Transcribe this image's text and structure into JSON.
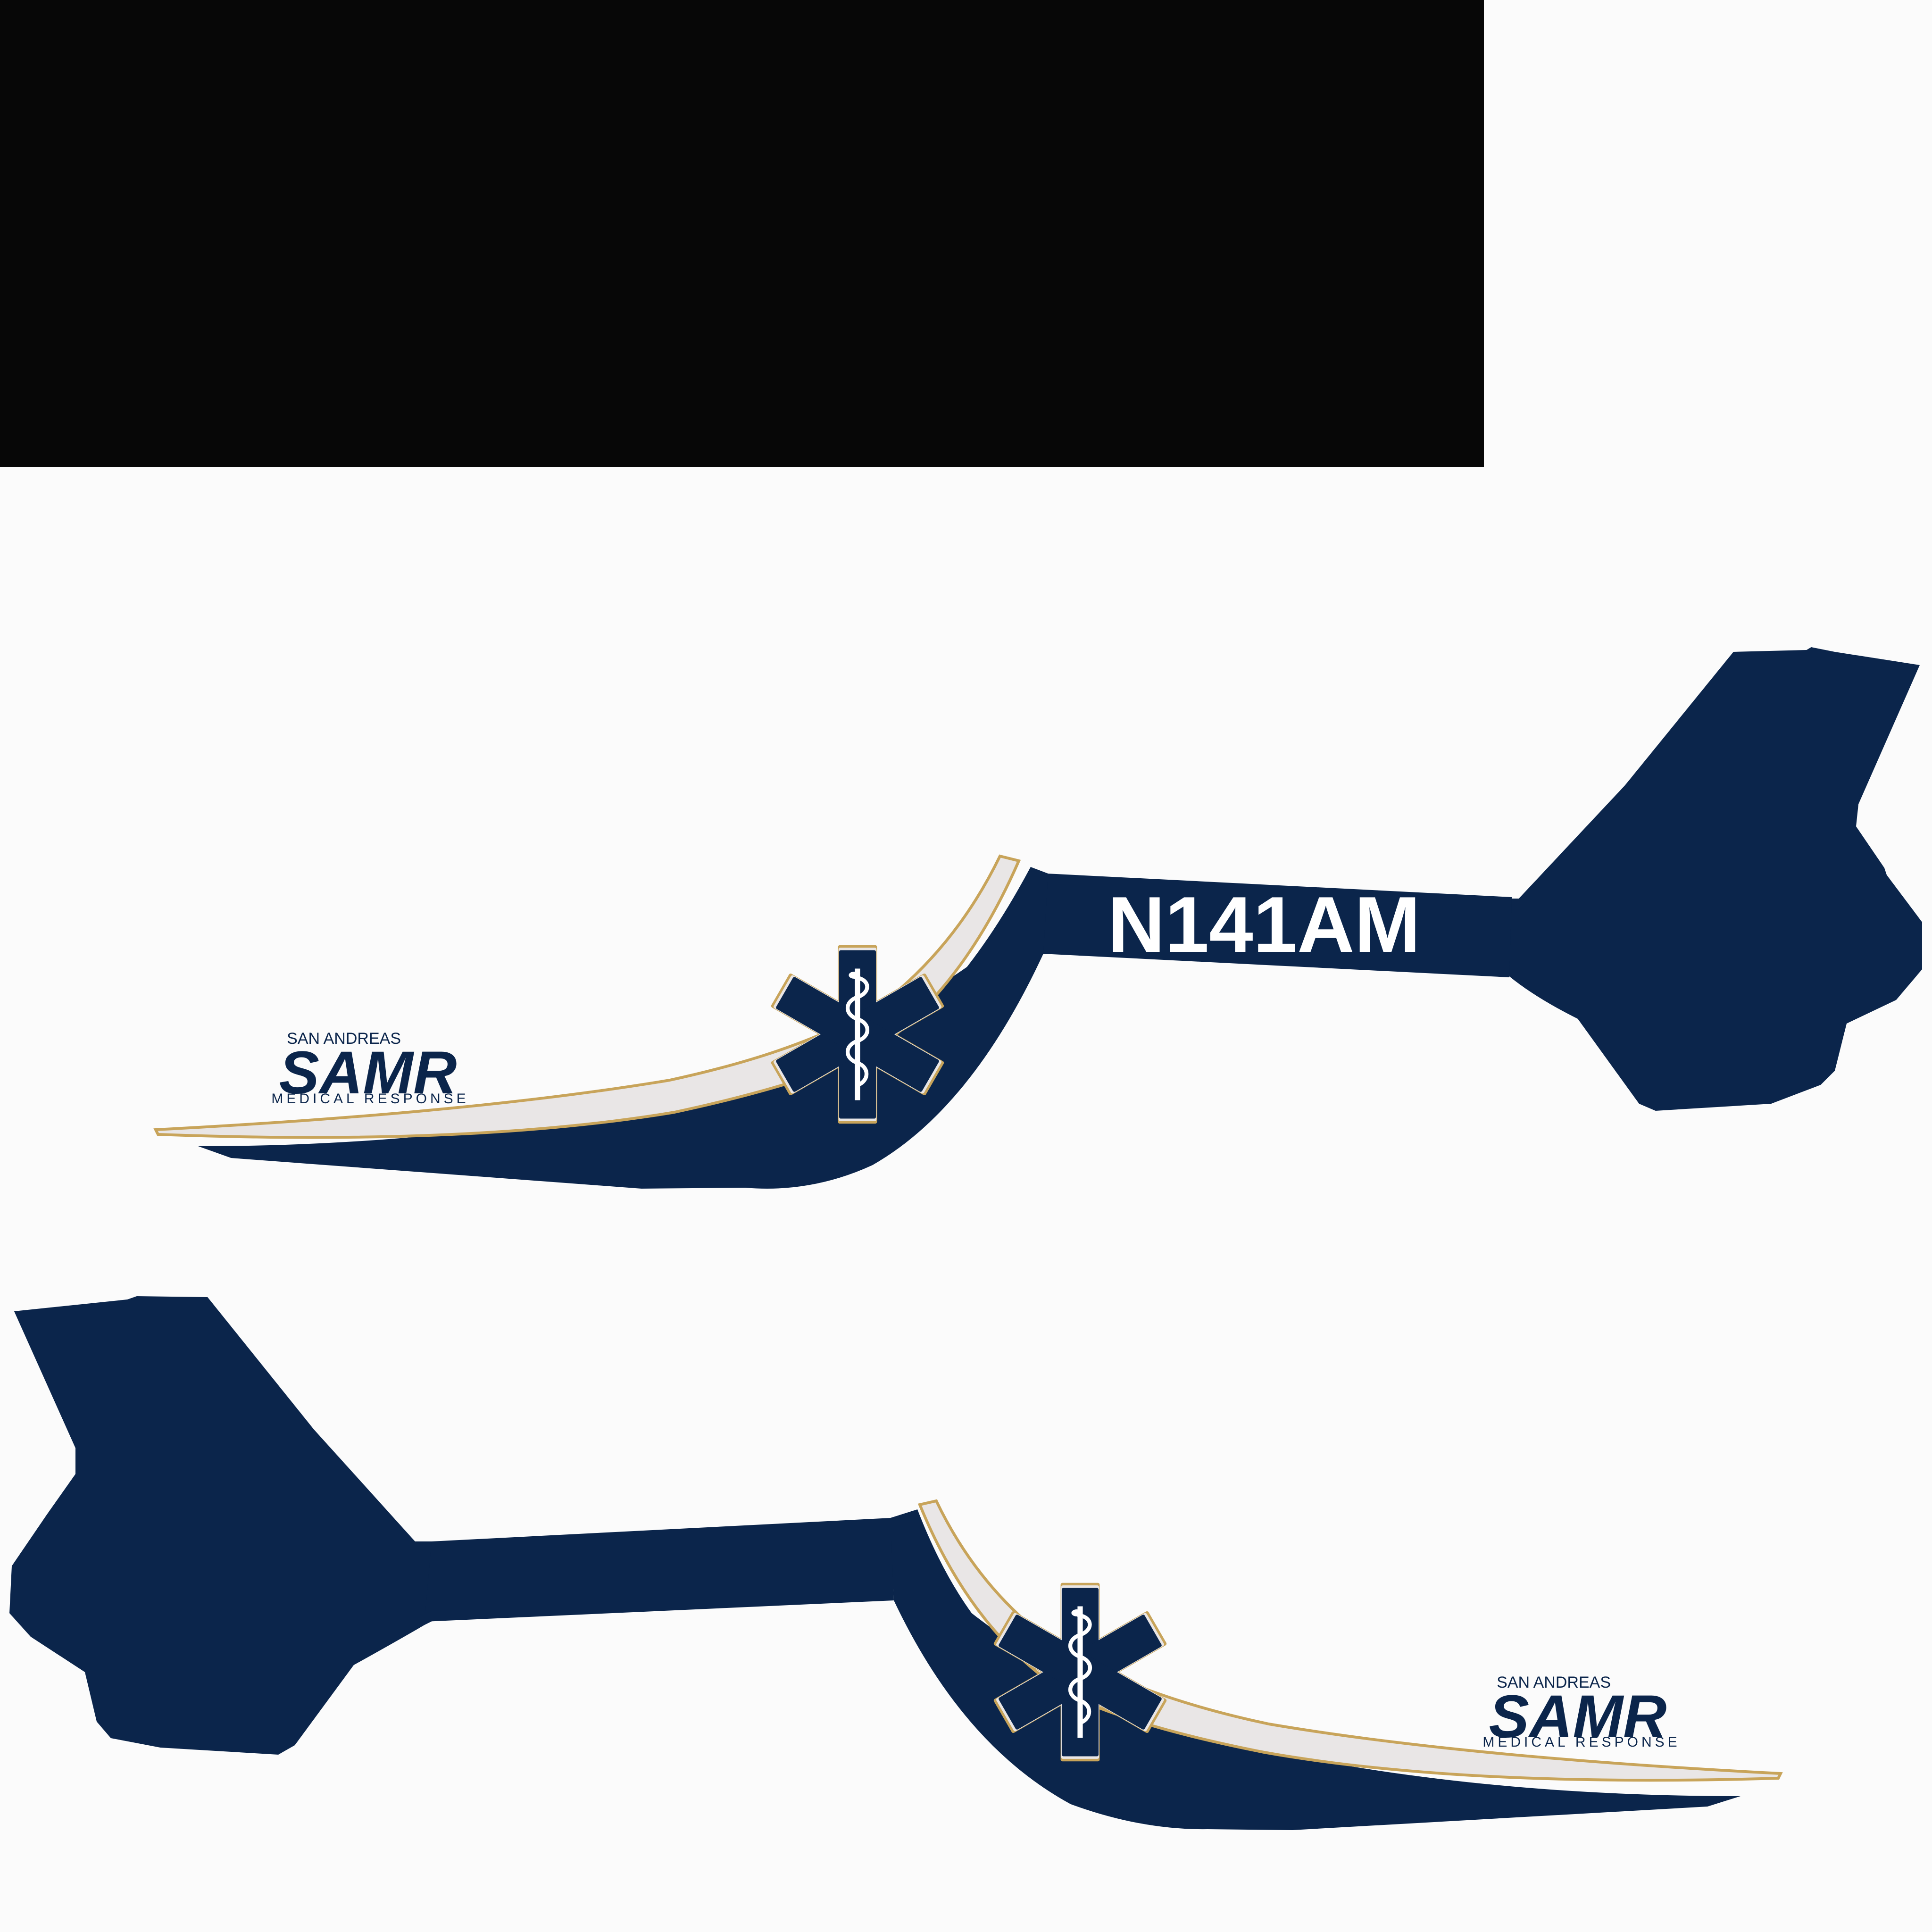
{
  "colors": {
    "background": "#fbfbfb",
    "black_block": "#070707",
    "navy": "#0b254b",
    "white_stripe": "#e9e6e6",
    "gold_trim": "#c8a45a",
    "text_white": "#ffffff"
  },
  "registration": "N141AM",
  "logo": {
    "top_line": "SAN ANDREAS",
    "main": "SAMR",
    "bottom_line": "MEDICAL RESPONSE"
  },
  "emblem": {
    "name": "star-of-life-icon"
  }
}
